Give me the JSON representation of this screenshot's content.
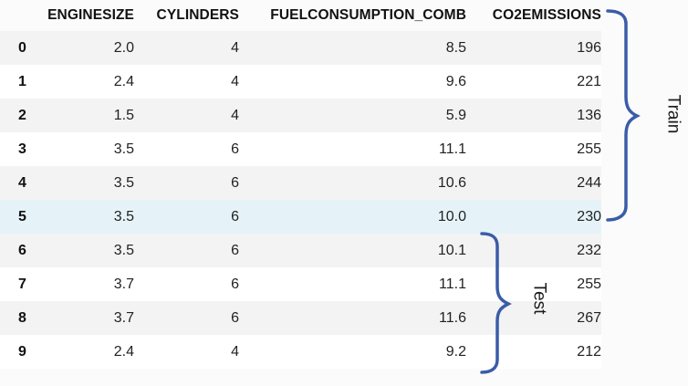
{
  "table": {
    "columns": [
      "",
      "ENGINESIZE",
      "CYLINDERS",
      "FUELCONSUMPTION_COMB",
      "CO2EMISSIONS"
    ],
    "rows": [
      [
        "0",
        "2.0",
        "4",
        "8.5",
        "196"
      ],
      [
        "1",
        "2.4",
        "4",
        "9.6",
        "221"
      ],
      [
        "2",
        "1.5",
        "4",
        "5.9",
        "136"
      ],
      [
        "3",
        "3.5",
        "6",
        "11.1",
        "255"
      ],
      [
        "4",
        "3.5",
        "6",
        "10.6",
        "244"
      ],
      [
        "5",
        "3.5",
        "6",
        "10.0",
        "230"
      ],
      [
        "6",
        "3.5",
        "6",
        "10.1",
        "232"
      ],
      [
        "7",
        "3.7",
        "6",
        "11.1",
        "255"
      ],
      [
        "8",
        "3.7",
        "6",
        "11.6",
        "267"
      ],
      [
        "9",
        "2.4",
        "4",
        "9.2",
        "212"
      ]
    ],
    "highlighted_row": 5
  },
  "annotations": {
    "train_label": "Train",
    "test_label": "Test",
    "brace_color": "#3a5da8"
  }
}
